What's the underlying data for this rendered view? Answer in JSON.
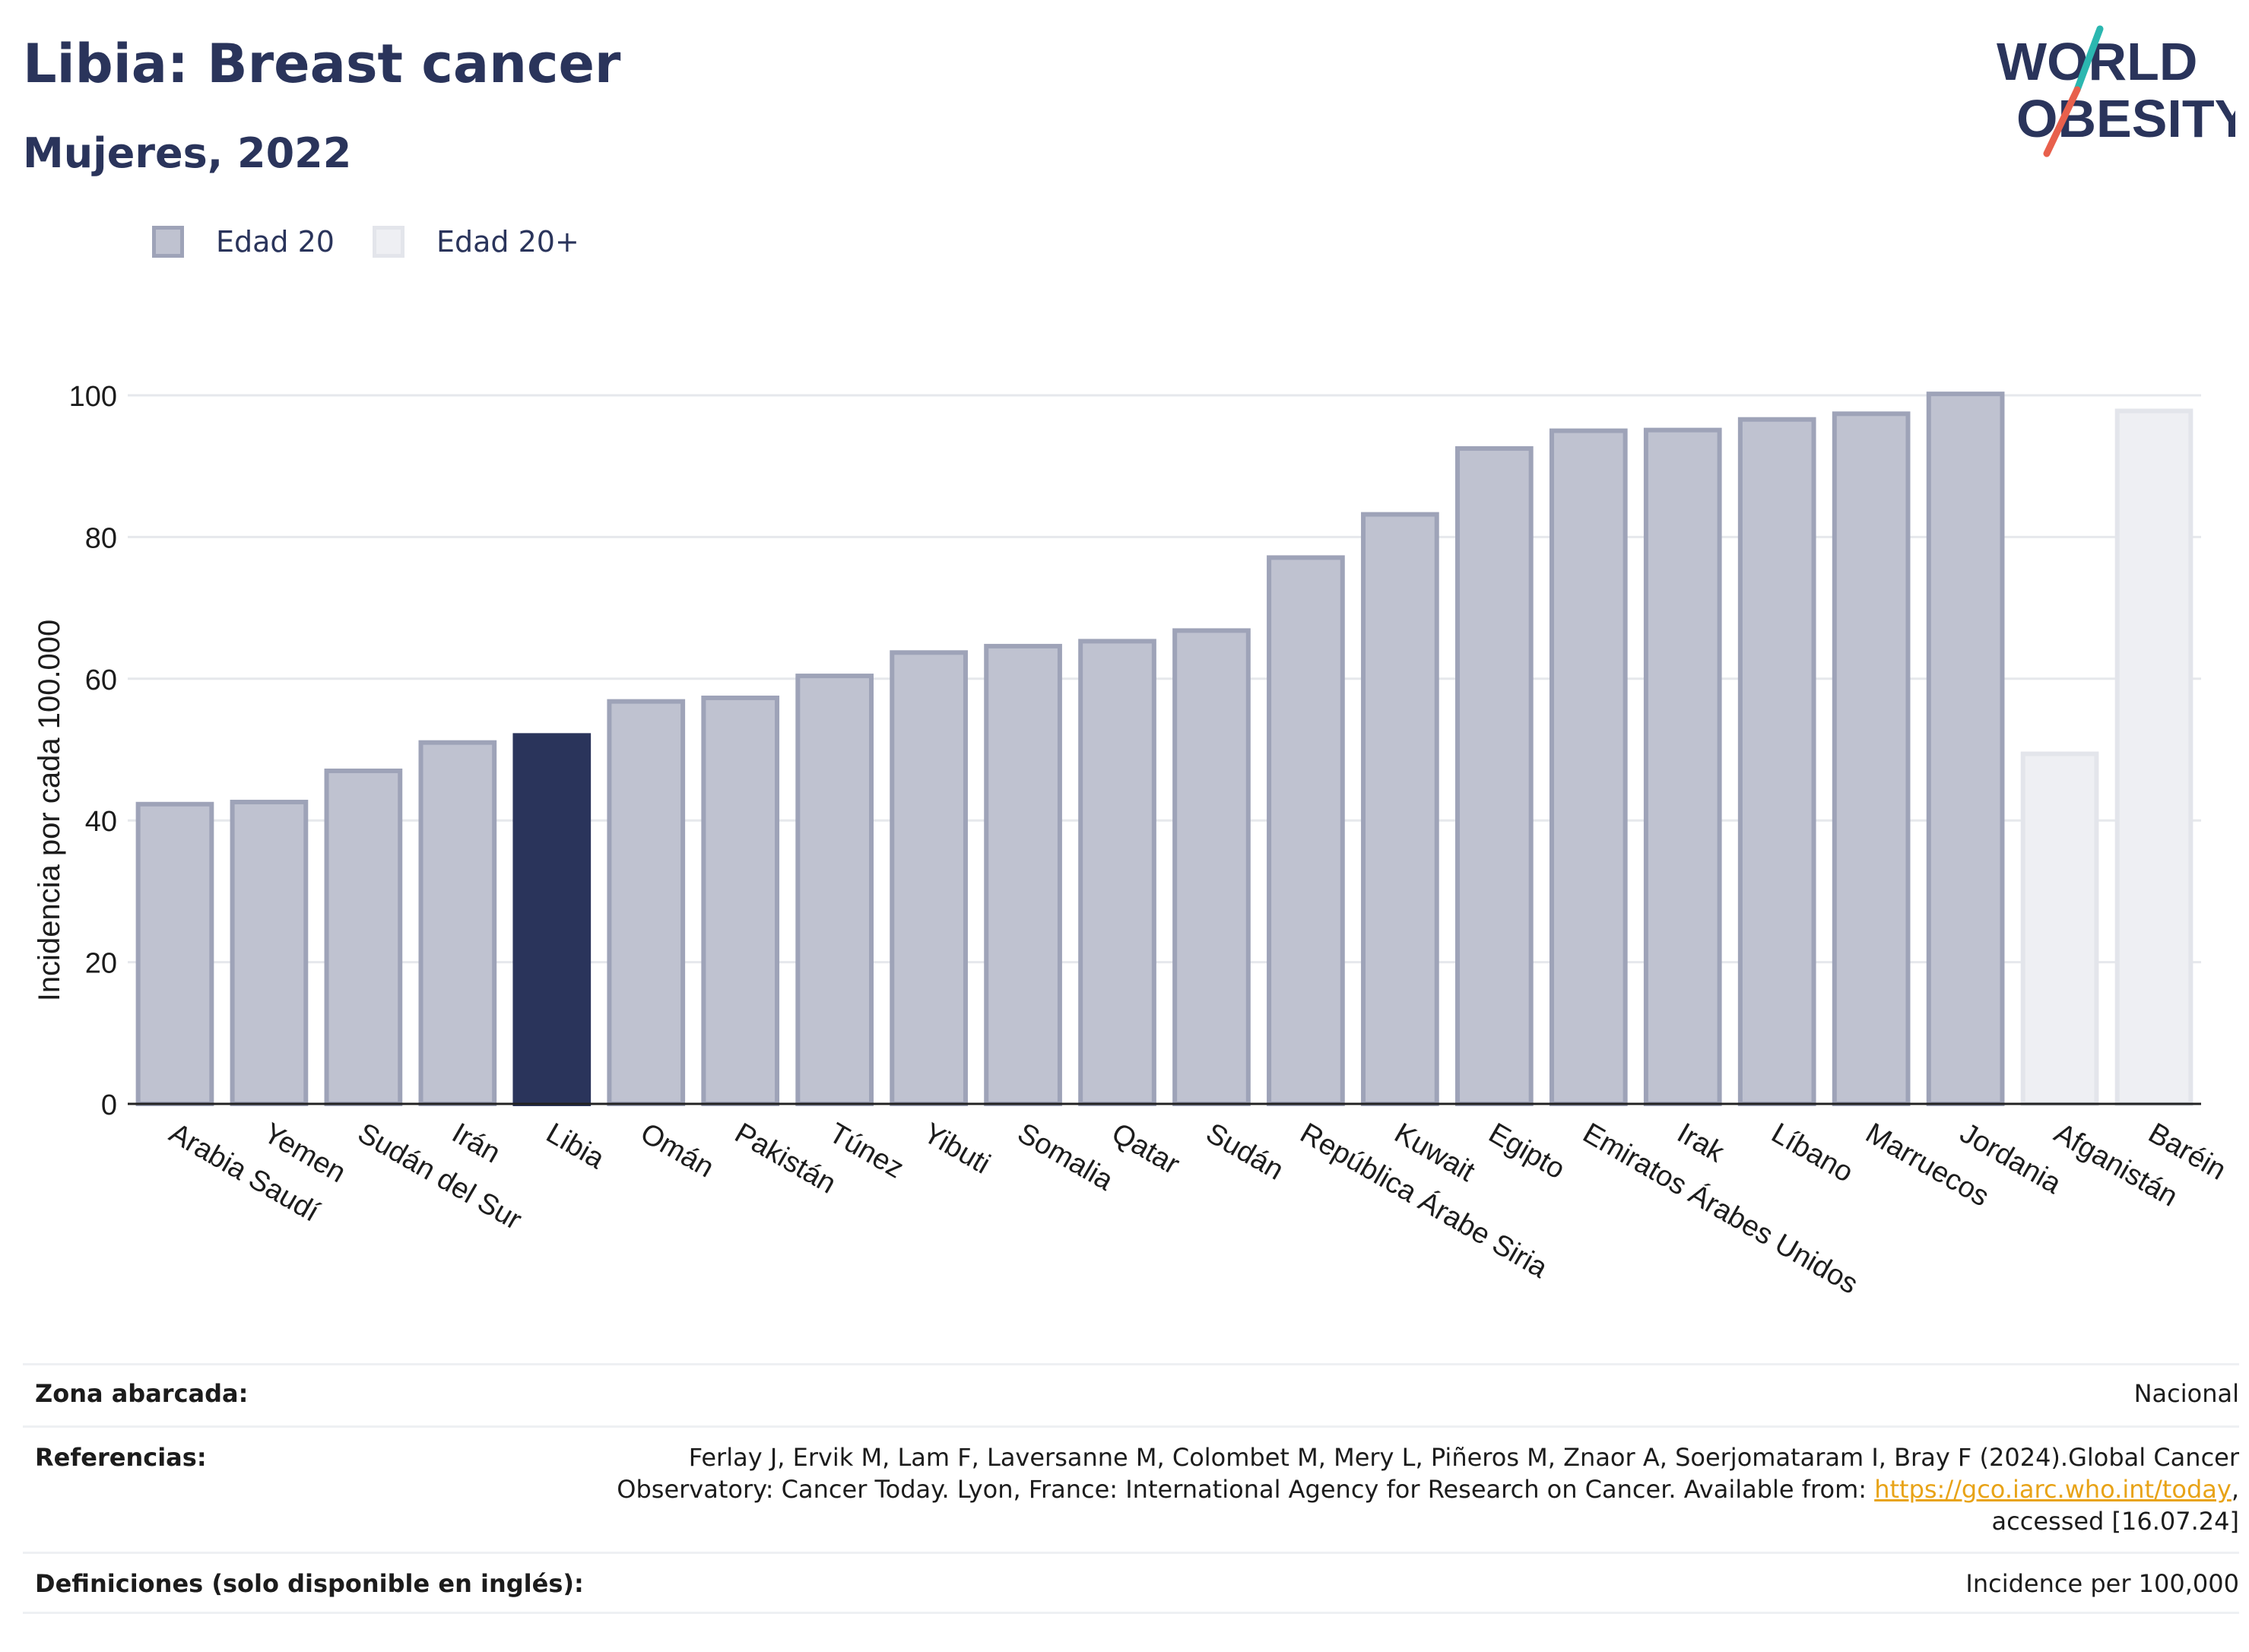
{
  "header": {
    "title": "Libia: Breast cancer",
    "subtitle": "Mujeres, 2022",
    "logo_text_line1": "WORLD",
    "logo_text_line2": "OBESITY"
  },
  "legend": {
    "items": [
      {
        "label": "Edad 20",
        "fill": "#bfc2d0",
        "stroke": "#9ea3b8"
      },
      {
        "label": "Edad 20+",
        "fill": "#eeeff3",
        "stroke": "#e3e5eb"
      }
    ]
  },
  "chart_data": {
    "type": "bar",
    "ylabel": "Incidencia por cada 100.000",
    "ylim": [
      0,
      100
    ],
    "yticks": [
      0,
      20,
      40,
      60,
      80,
      100
    ],
    "grid": true,
    "legend_position": "top-left",
    "categories": [
      "Arabia Saudí",
      "Yemen",
      "Sudán del Sur",
      "Irán",
      "Libia",
      "Omán",
      "Pakistán",
      "Túnez",
      "Yibuti",
      "Somalia",
      "Qatar",
      "Sudán",
      "República Árabe Siria",
      "Kuwait",
      "Egipto",
      "Emiratos Árabes Unidos",
      "Irak",
      "Líbano",
      "Marruecos",
      "Jordania",
      "Afganistán",
      "Baréin"
    ],
    "values": [
      42.3,
      42.6,
      47.0,
      51.0,
      52.0,
      56.8,
      57.3,
      60.4,
      63.7,
      64.6,
      65.3,
      66.8,
      77.1,
      83.2,
      92.5,
      95.0,
      95.1,
      96.6,
      97.4,
      100.2,
      49.4,
      97.8
    ],
    "groups": [
      "Edad 20",
      "Edad 20",
      "Edad 20",
      "Edad 20",
      "Edad 20",
      "Edad 20",
      "Edad 20",
      "Edad 20",
      "Edad 20",
      "Edad 20",
      "Edad 20",
      "Edad 20",
      "Edad 20",
      "Edad 20",
      "Edad 20",
      "Edad 20",
      "Edad 20",
      "Edad 20",
      "Edad 20",
      "Edad 20",
      "Edad 20+",
      "Edad 20+"
    ],
    "highlight": "Libia",
    "highlight_color": "#2a345b"
  },
  "footer": {
    "rows": [
      {
        "label": "Zona abarcada:",
        "value": "Nacional"
      },
      {
        "label": "Referencias:",
        "value_line1": "Ferlay J, Ervik M, Lam F, Laversanne M, Colombet M, Mery L, Piñeros M, Znaor A, Soerjomataram I, Bray F (2024).Global Cancer",
        "value_line2_pre": "Observatory: Cancer Today. Lyon, France: International Agency for Research on Cancer. Available from: ",
        "value_link": "https://gco.iarc.who.int/today",
        "value_line2_post": ",",
        "value_line3": "accessed [16.07.24]"
      },
      {
        "label": "Definiciones (solo disponible en inglés):",
        "value": "Incidence per 100,000"
      }
    ]
  }
}
